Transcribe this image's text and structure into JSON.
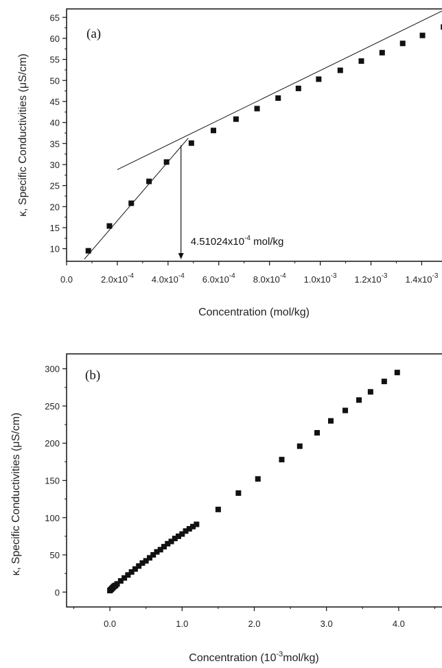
{
  "chart_data": [
    {
      "type": "scatter",
      "panel_label": "(a)",
      "xlabel": "Concentration (mol/kg)",
      "ylabel": "κ, Specific Conductivities (μS/cm)",
      "xlim": [
        0.0,
        0.00148
      ],
      "ylim": [
        7,
        67
      ],
      "xticks": [
        0.0,
        0.0002,
        0.0004,
        0.0006,
        0.0008,
        0.001,
        0.0012,
        0.0014
      ],
      "xtick_labels": [
        {
          "m": "0.0",
          "e": ""
        },
        {
          "m": "2.0x10",
          "e": "-4"
        },
        {
          "m": "4.0x10",
          "e": "-4"
        },
        {
          "m": "6.0x10",
          "e": "-4"
        },
        {
          "m": "8.0x10",
          "e": "-4"
        },
        {
          "m": "1.0x10",
          "e": "-3"
        },
        {
          "m": "1.2x10",
          "e": "-3"
        },
        {
          "m": "1.4x10",
          "e": "-3"
        }
      ],
      "yticks": [
        10,
        15,
        20,
        25,
        30,
        35,
        40,
        45,
        50,
        55,
        60,
        65
      ],
      "x": [
        8.58e-05,
        0.000169,
        0.000255,
        0.000325,
        0.000394,
        0.000492,
        0.000579,
        0.000668,
        0.000751,
        0.000834,
        0.000914,
        0.000994,
        0.001079,
        0.001162,
        0.001244,
        0.001325,
        0.001403,
        0.001486
      ],
      "y": [
        9.5,
        15.4,
        20.8,
        26.0,
        30.6,
        35.1,
        38.1,
        40.8,
        43.3,
        45.8,
        48.1,
        50.3,
        52.4,
        54.6,
        56.6,
        58.8,
        60.7,
        62.7
      ],
      "fit_lines": [
        {
          "x": [
            7e-05,
            0.00048
          ],
          "y": [
            7.5,
            36.3
          ]
        },
        {
          "x": [
            0.0002,
            0.00148
          ],
          "y": [
            28.8,
            66.5
          ]
        }
      ],
      "annotation": {
        "m": "4.51024x10",
        "e": "-4",
        "unit": " mol/kg",
        "x": 0.000451024
      }
    },
    {
      "type": "scatter",
      "panel_label": "(b)",
      "xlabel": "Concentration (10",
      "xlabel_sup": "-3",
      "xlabel_tail": "mol/kg)",
      "ylabel": "κ, Specific Conductivities (μS/cm)",
      "xlim": [
        -0.6,
        4.6
      ],
      "ylim": [
        -20,
        320
      ],
      "xticks": [
        0.0,
        1.0,
        2.0,
        3.0,
        4.0
      ],
      "xtick_labels": [
        "0.0",
        "1.0",
        "2.0",
        "3.0",
        "4.0"
      ],
      "yticks": [
        0,
        50,
        100,
        150,
        200,
        250,
        300
      ],
      "x": [
        0.0,
        0.01,
        0.02,
        0.03,
        0.04,
        0.05,
        0.06,
        0.07,
        0.08,
        0.1,
        0.15,
        0.2,
        0.25,
        0.3,
        0.35,
        0.4,
        0.45,
        0.5,
        0.55,
        0.6,
        0.65,
        0.7,
        0.75,
        0.8,
        0.85,
        0.9,
        0.95,
        1.0,
        1.05,
        1.1,
        1.15,
        1.2,
        1.5,
        1.78,
        2.05,
        2.38,
        2.63,
        2.87,
        3.06,
        3.26,
        3.45,
        3.61,
        3.8,
        3.98
      ],
      "y": [
        2,
        3,
        4,
        5,
        6,
        7,
        8,
        8.5,
        9,
        11,
        15,
        19,
        23,
        27,
        31,
        35,
        39,
        42,
        46,
        50,
        54,
        57,
        61,
        65,
        68,
        72,
        75,
        78,
        82,
        85,
        88,
        91,
        111,
        133,
        152,
        178,
        196,
        214,
        230,
        244,
        258,
        269,
        283,
        295
      ]
    }
  ]
}
